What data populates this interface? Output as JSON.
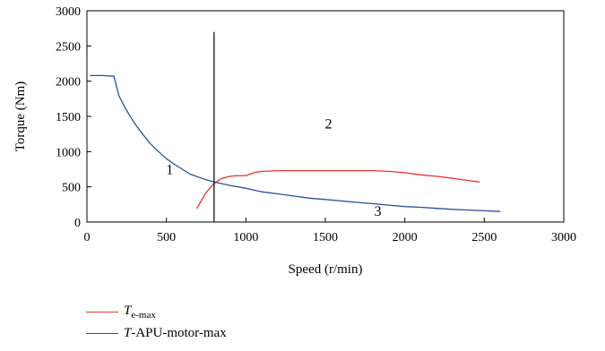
{
  "chart_data": {
    "type": "line",
    "xlabel": "Speed (r/min)",
    "ylabel": "Torque (Nm)",
    "xlim": [
      0,
      3000
    ],
    "ylim": [
      0,
      3000
    ],
    "xticks": [
      0,
      500,
      1000,
      1500,
      2000,
      2500,
      3000
    ],
    "yticks": [
      0,
      500,
      1000,
      1500,
      2000,
      2500,
      3000
    ],
    "grid": false,
    "legend_position": "bottom-left",
    "vertical_line": {
      "x": 800,
      "y_from": 0,
      "y_to": 2700
    },
    "region_labels": [
      {
        "text": "1",
        "x": 520,
        "y": 680
      },
      {
        "text": "2",
        "x": 1520,
        "y": 1330
      },
      {
        "text": "3",
        "x": 1830,
        "y": 90
      }
    ],
    "series": [
      {
        "legend_main": "T",
        "legend_sub": "e-max",
        "color": "#e8322d",
        "points": [
          [
            690,
            190
          ],
          [
            750,
            420
          ],
          [
            800,
            550
          ],
          [
            850,
            620
          ],
          [
            900,
            650
          ],
          [
            950,
            660
          ],
          [
            1000,
            660
          ],
          [
            1050,
            700
          ],
          [
            1100,
            720
          ],
          [
            1200,
            730
          ],
          [
            1400,
            730
          ],
          [
            1600,
            730
          ],
          [
            1800,
            730
          ],
          [
            1900,
            720
          ],
          [
            2000,
            700
          ],
          [
            2100,
            670
          ],
          [
            2200,
            650
          ],
          [
            2300,
            620
          ],
          [
            2400,
            590
          ],
          [
            2470,
            570
          ]
        ]
      },
      {
        "legend_main": "T",
        "legend_sub": "-APU-motor-max",
        "color": "#2750a0",
        "points": [
          [
            20,
            2080
          ],
          [
            100,
            2080
          ],
          [
            170,
            2070
          ],
          [
            200,
            1800
          ],
          [
            240,
            1620
          ],
          [
            300,
            1400
          ],
          [
            350,
            1250
          ],
          [
            400,
            1110
          ],
          [
            450,
            1000
          ],
          [
            500,
            900
          ],
          [
            550,
            820
          ],
          [
            600,
            750
          ],
          [
            650,
            680
          ],
          [
            700,
            640
          ],
          [
            750,
            600
          ],
          [
            800,
            570
          ],
          [
            900,
            520
          ],
          [
            1000,
            480
          ],
          [
            1100,
            430
          ],
          [
            1200,
            400
          ],
          [
            1300,
            370
          ],
          [
            1400,
            340
          ],
          [
            1500,
            320
          ],
          [
            1600,
            300
          ],
          [
            1700,
            280
          ],
          [
            1800,
            260
          ],
          [
            1900,
            240
          ],
          [
            2000,
            220
          ],
          [
            2100,
            210
          ],
          [
            2200,
            195
          ],
          [
            2300,
            180
          ],
          [
            2400,
            170
          ],
          [
            2500,
            160
          ],
          [
            2600,
            150
          ]
        ]
      }
    ]
  }
}
